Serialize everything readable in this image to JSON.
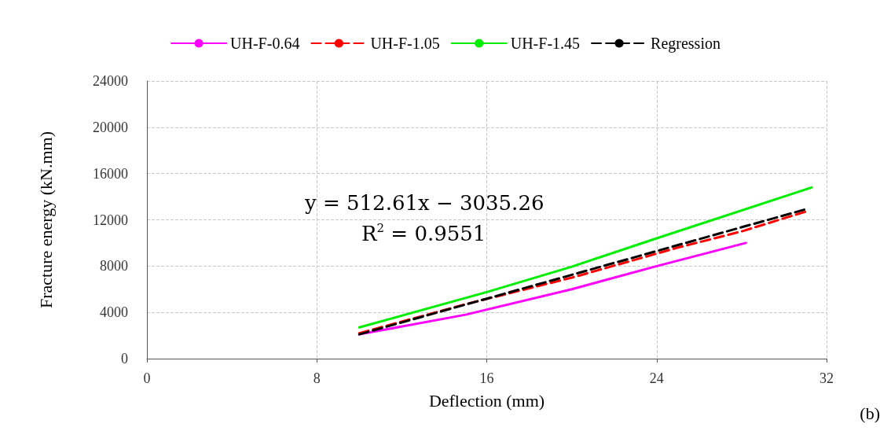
{
  "chart_data": {
    "type": "line",
    "xlabel": "Deflection (mm)",
    "ylabel": "Fracture energy (kN.mm)",
    "xlim": [
      0,
      32
    ],
    "xticks": [
      0,
      8,
      16,
      24,
      32
    ],
    "ylim": [
      0,
      24000
    ],
    "yticks": [
      0,
      4000,
      8000,
      12000,
      16000,
      20000,
      24000
    ],
    "grid": true,
    "legend": "top",
    "marker": "none",
    "annotations": [
      "y = 512.61x − 3035.26",
      "R$^{2}$ = 0.9551",
      "(b)"
    ],
    "series": [
      {
        "name": "UH-F-0.64",
        "color": "#ff00ff",
        "line_style": "solid",
        "x": [
          10,
          15,
          20,
          24,
          28.2
        ],
        "values": [
          2100,
          3800,
          6000,
          8000,
          10000
        ]
      },
      {
        "name": "UH-F-1.05",
        "color": "#ff0000",
        "line_style": "dashed",
        "x": [
          10,
          15,
          20,
          25,
          28,
          31
        ],
        "values": [
          2200,
          4700,
          7000,
          9600,
          11000,
          12700
        ]
      },
      {
        "name": "UH-F-1.45",
        "color": "#00ee00",
        "line_style": "solid",
        "x": [
          10,
          16,
          20,
          24,
          31.3
        ],
        "values": [
          2700,
          5750,
          7950,
          10400,
          14800
        ]
      },
      {
        "name": "Regression",
        "color": "#000000",
        "line_style": "dashed",
        "x": [
          10,
          31
        ],
        "values": [
          2100,
          12900
        ]
      }
    ]
  }
}
